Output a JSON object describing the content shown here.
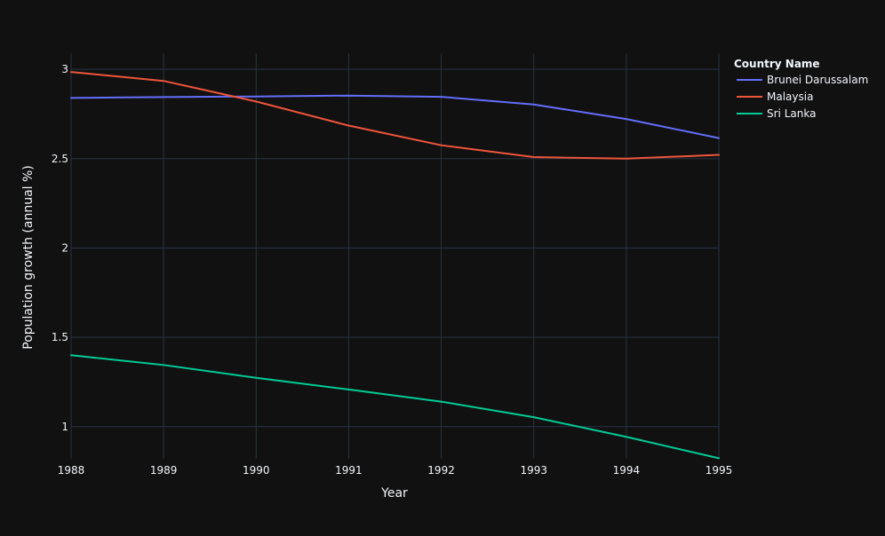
{
  "chart_data": {
    "type": "line",
    "title": "",
    "xlabel": "Year",
    "ylabel": "Population growth (annual %)",
    "x": [
      1988,
      1989,
      1990,
      1991,
      1992,
      1993,
      1994,
      1995
    ],
    "xlim": [
      1988,
      1995
    ],
    "ylim": [
      0.82,
      3.09
    ],
    "x_ticks": [
      "1988",
      "1989",
      "1990",
      "1991",
      "1992",
      "1993",
      "1994",
      "1995"
    ],
    "y_ticks": [
      1,
      1.5,
      2,
      2.5,
      3
    ],
    "y_tick_labels": [
      "1",
      "1.5",
      "2",
      "2.5",
      "3"
    ],
    "grid": true,
    "legend": {
      "title": "Country Name",
      "placement": "top-right"
    },
    "series": [
      {
        "name": "Brunei Darussalam",
        "color": "#636efa",
        "values": [
          2.84,
          2.845,
          2.848,
          2.853,
          2.846,
          2.803,
          2.722,
          2.615
        ]
      },
      {
        "name": "Malaysia",
        "color": "#ef553b",
        "values": [
          2.985,
          2.935,
          2.82,
          2.685,
          2.575,
          2.509,
          2.5,
          2.521
        ]
      },
      {
        "name": "Sri Lanka",
        "color": "#00cc96",
        "values": [
          1.4,
          1.345,
          1.273,
          1.208,
          1.14,
          1.053,
          0.943,
          0.823
        ]
      }
    ]
  },
  "colors": {
    "background": "#111111",
    "grid": "#283442",
    "text": "#f2f5fa"
  }
}
